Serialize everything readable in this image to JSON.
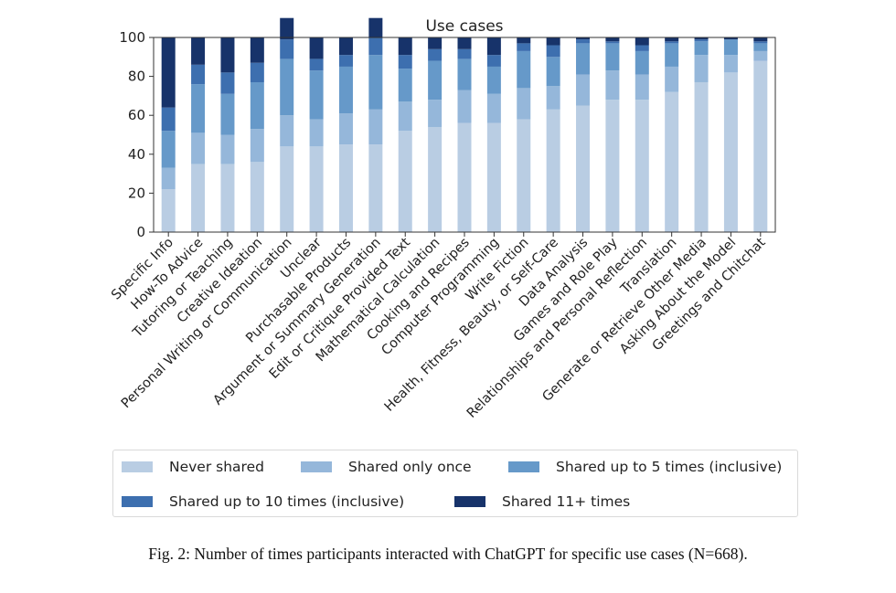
{
  "chart_data": {
    "type": "bar",
    "stacked": true,
    "title": "Use cases",
    "xlabel": "",
    "ylabel": "",
    "ylim": [
      0,
      100
    ],
    "yticks": [
      0,
      20,
      40,
      60,
      80,
      100
    ],
    "grid": false,
    "legend_position": "bottom",
    "categories": [
      "Specific Info",
      "How-To Advice",
      "Tutoring or Teaching",
      "Creative Ideation",
      "Personal Writing or Communication",
      "Unclear",
      "Purchasable Products",
      "Argument or Summary Generation",
      "Edit or Critique Provided Text",
      "Mathematical Calculation",
      "Cooking and Recipes",
      "Computer Programming",
      "Write Fiction",
      "Health, Fitness, Beauty, or Self-Care",
      "Data Analysis",
      "Games and Role Play",
      "Relationships and Personal Reflection",
      "Translation",
      "Generate or Retrieve Other Media",
      "Asking About the Model",
      "Greetings and Chitchat"
    ],
    "series": [
      {
        "name": "Never shared",
        "color": "#b9cde3",
        "values": [
          22,
          35,
          35,
          36,
          44,
          44,
          45,
          45,
          52,
          54,
          56,
          56,
          58,
          63,
          65,
          68,
          68,
          72,
          77,
          82,
          88
        ]
      },
      {
        "name": "Shared only once",
        "color": "#95b7da",
        "values": [
          11,
          16,
          15,
          17,
          16,
          14,
          16,
          18,
          15,
          14,
          17,
          15,
          16,
          12,
          16,
          15,
          13,
          13,
          14,
          9,
          5
        ]
      },
      {
        "name": "Shared up to 5 times (inclusive)",
        "color": "#6699c9",
        "values": [
          19,
          25,
          21,
          24,
          29,
          25,
          24,
          28,
          17,
          20,
          16,
          14,
          19,
          15,
          16,
          14,
          12,
          12,
          7,
          8,
          4
        ]
      },
      {
        "name": "Shared up to 10 times (inclusive)",
        "color": "#3d6faf",
        "values": [
          12,
          10,
          11,
          10,
          10,
          6,
          6,
          9,
          7,
          6,
          5,
          6,
          4,
          6,
          2,
          1,
          3,
          1,
          1,
          0,
          1
        ]
      },
      {
        "name": "Shared 11+ times",
        "color": "#17336a",
        "values": [
          36,
          14,
          18,
          13,
          11,
          11,
          9,
          10,
          9,
          6,
          6,
          9,
          3,
          4,
          1,
          2,
          4,
          2,
          1,
          1,
          2
        ]
      }
    ]
  },
  "caption": "Fig. 2: Number of times participants interacted with ChatGPT for specific use cases (N=668)."
}
